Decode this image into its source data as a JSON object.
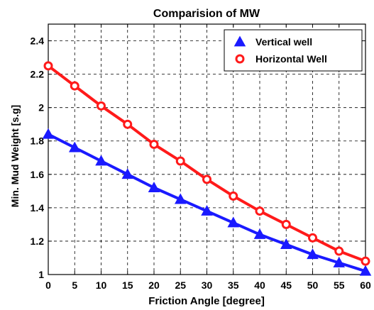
{
  "chart_data": {
    "type": "line",
    "title": "Comparision of MW",
    "xlabel": "Friction Angle [degree]",
    "ylabel": "Min. Mud Weight [s.g]",
    "xlim": [
      0,
      60
    ],
    "ylim": [
      1,
      2.5
    ],
    "xticks": [
      0,
      5,
      10,
      15,
      20,
      25,
      30,
      35,
      40,
      45,
      50,
      55,
      60
    ],
    "yticks": [
      1,
      1.2,
      1.4,
      1.6,
      1.8,
      2,
      2.2,
      2.4
    ],
    "ytick_labels": [
      "1",
      "1.2",
      "1.4",
      "1.6",
      "1.8",
      "2",
      "2.2",
      "2.4"
    ],
    "grid": true,
    "grid_style": "dashed",
    "legend_position": "top-right",
    "x": [
      0,
      5,
      10,
      15,
      20,
      25,
      30,
      35,
      40,
      45,
      50,
      55,
      60
    ],
    "series": [
      {
        "name": "Vertical well",
        "marker": "triangle",
        "color": "#1a1aff",
        "values": [
          1.84,
          1.76,
          1.68,
          1.6,
          1.52,
          1.45,
          1.38,
          1.31,
          1.24,
          1.18,
          1.12,
          1.07,
          1.02
        ]
      },
      {
        "name": "Horizontal Well",
        "marker": "circle",
        "color": "#ff1a1a",
        "values": [
          2.25,
          2.13,
          2.01,
          1.9,
          1.78,
          1.68,
          1.57,
          1.47,
          1.38,
          1.3,
          1.22,
          1.14,
          1.08
        ]
      }
    ]
  }
}
